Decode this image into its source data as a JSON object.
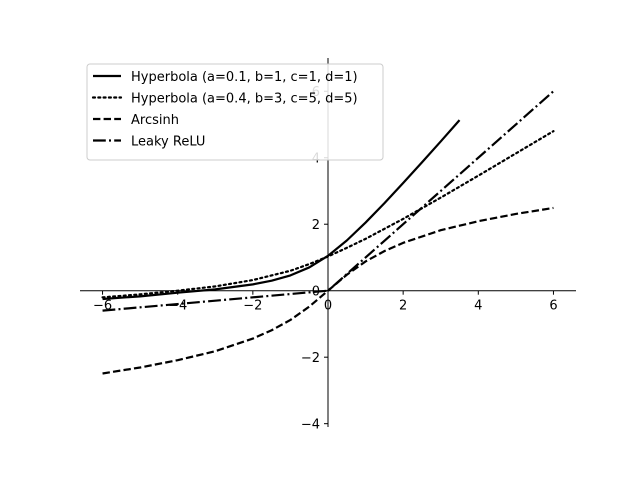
{
  "chart_data": {
    "type": "line",
    "title": "",
    "xlabel": "",
    "ylabel": "",
    "xlim": [
      -6.6,
      6.6
    ],
    "ylim": [
      -4.1,
      7.0
    ],
    "xticks": [
      -6,
      -4,
      -2,
      0,
      2,
      4,
      6
    ],
    "yticks": [
      -4,
      -2,
      0,
      2,
      4,
      6
    ],
    "xtick_labels": [
      "−6",
      "−4",
      "−2",
      "0",
      "2",
      "4",
      "6"
    ],
    "ytick_labels": [
      "−4",
      "−2",
      "0",
      "2",
      "4",
      "6"
    ],
    "grid": false,
    "spines": "centered",
    "legend_position": "top-left",
    "series": [
      {
        "name": "Hyperbola (a=0.1, b=1, c=1, d=1)",
        "style": "solid",
        "color": "#000000",
        "x": [
          -6,
          -5,
          -4,
          -3,
          -2,
          -1.5,
          -1,
          -0.5,
          0,
          0.5,
          1,
          1.5,
          2,
          2.5,
          3,
          3.5
        ],
        "y": [
          -0.25,
          -0.17,
          -0.06,
          0.04,
          0.19,
          0.3,
          0.46,
          0.7,
          1.05,
          1.51,
          2.05,
          2.63,
          3.24,
          3.86,
          4.49,
          5.13
        ]
      },
      {
        "name": "Hyperbola (a=0.4, b=3, c=5, d=5)",
        "style": "dotted",
        "color": "#000000",
        "x": [
          -6,
          -5,
          -4,
          -3,
          -2,
          -1,
          -0.5,
          0,
          0.5,
          1,
          2,
          3,
          4,
          5,
          6
        ],
        "y": [
          -0.2,
          -0.11,
          0,
          0.13,
          0.32,
          0.6,
          0.8,
          1.03,
          1.29,
          1.56,
          2.16,
          2.8,
          3.46,
          4.13,
          4.8
        ]
      },
      {
        "name": "Arcsinh",
        "style": "dashed",
        "color": "#000000",
        "x": [
          -6,
          -5,
          -4,
          -3,
          -2,
          -1.5,
          -1,
          -0.5,
          0,
          0.5,
          1,
          1.5,
          2,
          3,
          4,
          5,
          6
        ],
        "y": [
          -2.49,
          -2.31,
          -2.09,
          -1.82,
          -1.44,
          -1.19,
          -0.88,
          -0.48,
          0,
          0.48,
          0.88,
          1.19,
          1.44,
          1.82,
          2.09,
          2.31,
          2.49
        ]
      },
      {
        "name": "Leaky ReLU",
        "style": "dashdot",
        "color": "#000000",
        "x": [
          -6,
          0,
          6
        ],
        "y": [
          -0.6,
          0,
          6
        ]
      }
    ]
  }
}
